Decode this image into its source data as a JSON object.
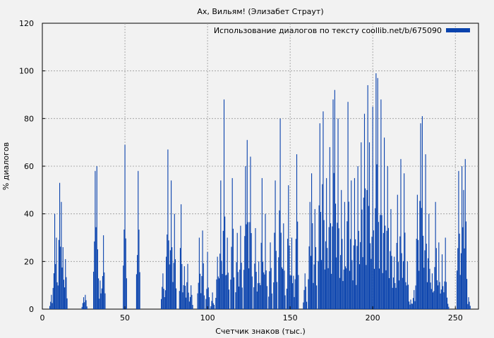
{
  "chart_data": {
    "type": "bar",
    "title": "Ах, Вильям! (Элизабет Страут)",
    "xlabel": "Счетчик знаков (тыс.)",
    "ylabel": "% диалогов",
    "xlim": [
      0,
      264
    ],
    "ylim": [
      0,
      120
    ],
    "xticks": [
      0,
      50,
      100,
      150,
      200,
      250
    ],
    "yticks": [
      0,
      20,
      40,
      60,
      80,
      100,
      120
    ],
    "grid": true,
    "legend_position": "top-right",
    "series": [
      {
        "name": "Использование диалогов по тексту coollib.net/b/675090",
        "color": "#0a43ad",
        "bar_width": 0.5,
        "peaks": [
          {
            "x": 5.5,
            "y": 6
          },
          {
            "x": 7.5,
            "y": 40
          },
          {
            "x": 8.5,
            "y": 30
          },
          {
            "x": 10.5,
            "y": 53
          },
          {
            "x": 11.5,
            "y": 45
          },
          {
            "x": 12.5,
            "y": 26
          },
          {
            "x": 14,
            "y": 21
          },
          {
            "x": 25,
            "y": 5
          },
          {
            "x": 26,
            "y": 6
          },
          {
            "x": 32,
            "y": 58
          },
          {
            "x": 33,
            "y": 60
          },
          {
            "x": 35,
            "y": 12
          },
          {
            "x": 37,
            "y": 31
          },
          {
            "x": 50,
            "y": 69
          },
          {
            "x": 58,
            "y": 58
          },
          {
            "x": 73,
            "y": 15
          },
          {
            "x": 75,
            "y": 22
          },
          {
            "x": 76,
            "y": 67
          },
          {
            "x": 78,
            "y": 54
          },
          {
            "x": 80,
            "y": 40
          },
          {
            "x": 84,
            "y": 44
          },
          {
            "x": 86,
            "y": 18
          },
          {
            "x": 88,
            "y": 19
          },
          {
            "x": 90,
            "y": 10
          },
          {
            "x": 95,
            "y": 30
          },
          {
            "x": 97,
            "y": 33
          },
          {
            "x": 100,
            "y": 24
          },
          {
            "x": 103,
            "y": 7
          },
          {
            "x": 106,
            "y": 22
          },
          {
            "x": 108,
            "y": 54
          },
          {
            "x": 110,
            "y": 88
          },
          {
            "x": 112,
            "y": 30
          },
          {
            "x": 115,
            "y": 55
          },
          {
            "x": 118,
            "y": 32
          },
          {
            "x": 120,
            "y": 35
          },
          {
            "x": 123,
            "y": 60
          },
          {
            "x": 124,
            "y": 71
          },
          {
            "x": 126,
            "y": 64
          },
          {
            "x": 129,
            "y": 34
          },
          {
            "x": 131,
            "y": 20
          },
          {
            "x": 133,
            "y": 55
          },
          {
            "x": 135,
            "y": 40
          },
          {
            "x": 138,
            "y": 28
          },
          {
            "x": 141,
            "y": 54
          },
          {
            "x": 144,
            "y": 80
          },
          {
            "x": 146,
            "y": 36
          },
          {
            "x": 149,
            "y": 52
          },
          {
            "x": 151,
            "y": 30
          },
          {
            "x": 152,
            "y": 14
          },
          {
            "x": 154,
            "y": 65
          },
          {
            "x": 159,
            "y": 15
          },
          {
            "x": 162,
            "y": 45
          },
          {
            "x": 163,
            "y": 57
          },
          {
            "x": 165,
            "y": 42
          },
          {
            "x": 168,
            "y": 78
          },
          {
            "x": 170,
            "y": 83
          },
          {
            "x": 172,
            "y": 55
          },
          {
            "x": 174,
            "y": 68
          },
          {
            "x": 176,
            "y": 88
          },
          {
            "x": 177,
            "y": 92
          },
          {
            "x": 179,
            "y": 80
          },
          {
            "x": 181,
            "y": 50
          },
          {
            "x": 183,
            "y": 45
          },
          {
            "x": 185,
            "y": 87
          },
          {
            "x": 187,
            "y": 54
          },
          {
            "x": 189,
            "y": 55
          },
          {
            "x": 191,
            "y": 60
          },
          {
            "x": 193,
            "y": 70
          },
          {
            "x": 195,
            "y": 82
          },
          {
            "x": 197,
            "y": 94
          },
          {
            "x": 198,
            "y": 70
          },
          {
            "x": 200,
            "y": 85
          },
          {
            "x": 202,
            "y": 99
          },
          {
            "x": 203,
            "y": 97
          },
          {
            "x": 205,
            "y": 88
          },
          {
            "x": 207,
            "y": 72
          },
          {
            "x": 209,
            "y": 60
          },
          {
            "x": 211,
            "y": 42
          },
          {
            "x": 213,
            "y": 22
          },
          {
            "x": 215,
            "y": 48
          },
          {
            "x": 217,
            "y": 63
          },
          {
            "x": 219,
            "y": 57
          },
          {
            "x": 221,
            "y": 20
          },
          {
            "x": 223,
            "y": 4
          },
          {
            "x": 225,
            "y": 8
          },
          {
            "x": 227,
            "y": 48
          },
          {
            "x": 229,
            "y": 78
          },
          {
            "x": 230,
            "y": 81
          },
          {
            "x": 232,
            "y": 65
          },
          {
            "x": 234,
            "y": 40
          },
          {
            "x": 236,
            "y": 15
          },
          {
            "x": 238,
            "y": 45
          },
          {
            "x": 240,
            "y": 28
          },
          {
            "x": 242,
            "y": 23
          },
          {
            "x": 244,
            "y": 30
          },
          {
            "x": 245,
            "y": 4
          },
          {
            "x": 252,
            "y": 58
          },
          {
            "x": 254,
            "y": 60
          },
          {
            "x": 255,
            "y": 50
          },
          {
            "x": 256,
            "y": 63
          },
          {
            "x": 258,
            "y": 5
          }
        ]
      }
    ]
  }
}
